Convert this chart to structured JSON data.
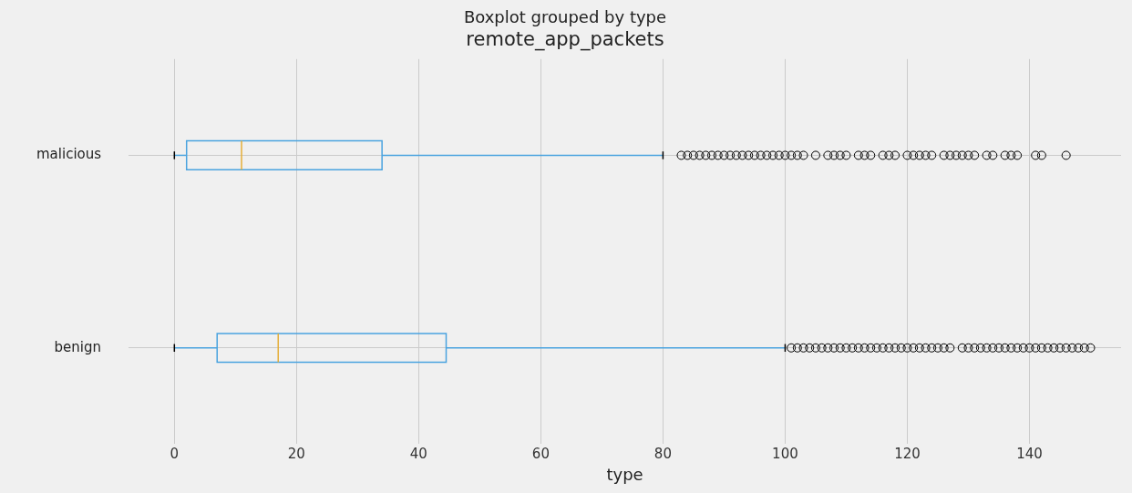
{
  "chart_data": {
    "type": "box",
    "title": "Boxplot grouped by type",
    "subtitle": "remote_app_packets",
    "xlabel": "type",
    "orientation": "horizontal",
    "categories": [
      "malicious",
      "benign"
    ],
    "color": "#4aa3df",
    "marker": "circle",
    "grid": true,
    "xlim": [
      -7.5,
      155
    ],
    "xticks": [
      0,
      20,
      40,
      60,
      80,
      100,
      120,
      140
    ],
    "boxes": [
      {
        "low": 0,
        "q1": 2,
        "median": 11,
        "q3": 34,
        "high": 80,
        "outliers": [
          83,
          84,
          85,
          86,
          87,
          88,
          89,
          90,
          91,
          92,
          93,
          94,
          95,
          96,
          97,
          98,
          99,
          100,
          101,
          102,
          103,
          105,
          107,
          108,
          109,
          110,
          112,
          113,
          114,
          116,
          117,
          118,
          120,
          121,
          122,
          123,
          124,
          126,
          127,
          128,
          129,
          130,
          131,
          133,
          134,
          136,
          137,
          138,
          141,
          142,
          146
        ]
      },
      {
        "low": 0,
        "q1": 7,
        "median": 17,
        "q3": 44.5,
        "high": 100,
        "outliers": [
          101,
          102,
          103,
          104,
          105,
          106,
          107,
          108,
          109,
          110,
          111,
          112,
          113,
          114,
          115,
          116,
          117,
          118,
          119,
          120,
          121,
          122,
          123,
          124,
          125,
          126,
          127,
          129,
          130,
          131,
          132,
          133,
          134,
          135,
          136,
          137,
          138,
          139,
          140,
          141,
          142,
          143,
          144,
          145,
          146,
          147,
          148,
          149,
          150
        ]
      }
    ]
  }
}
